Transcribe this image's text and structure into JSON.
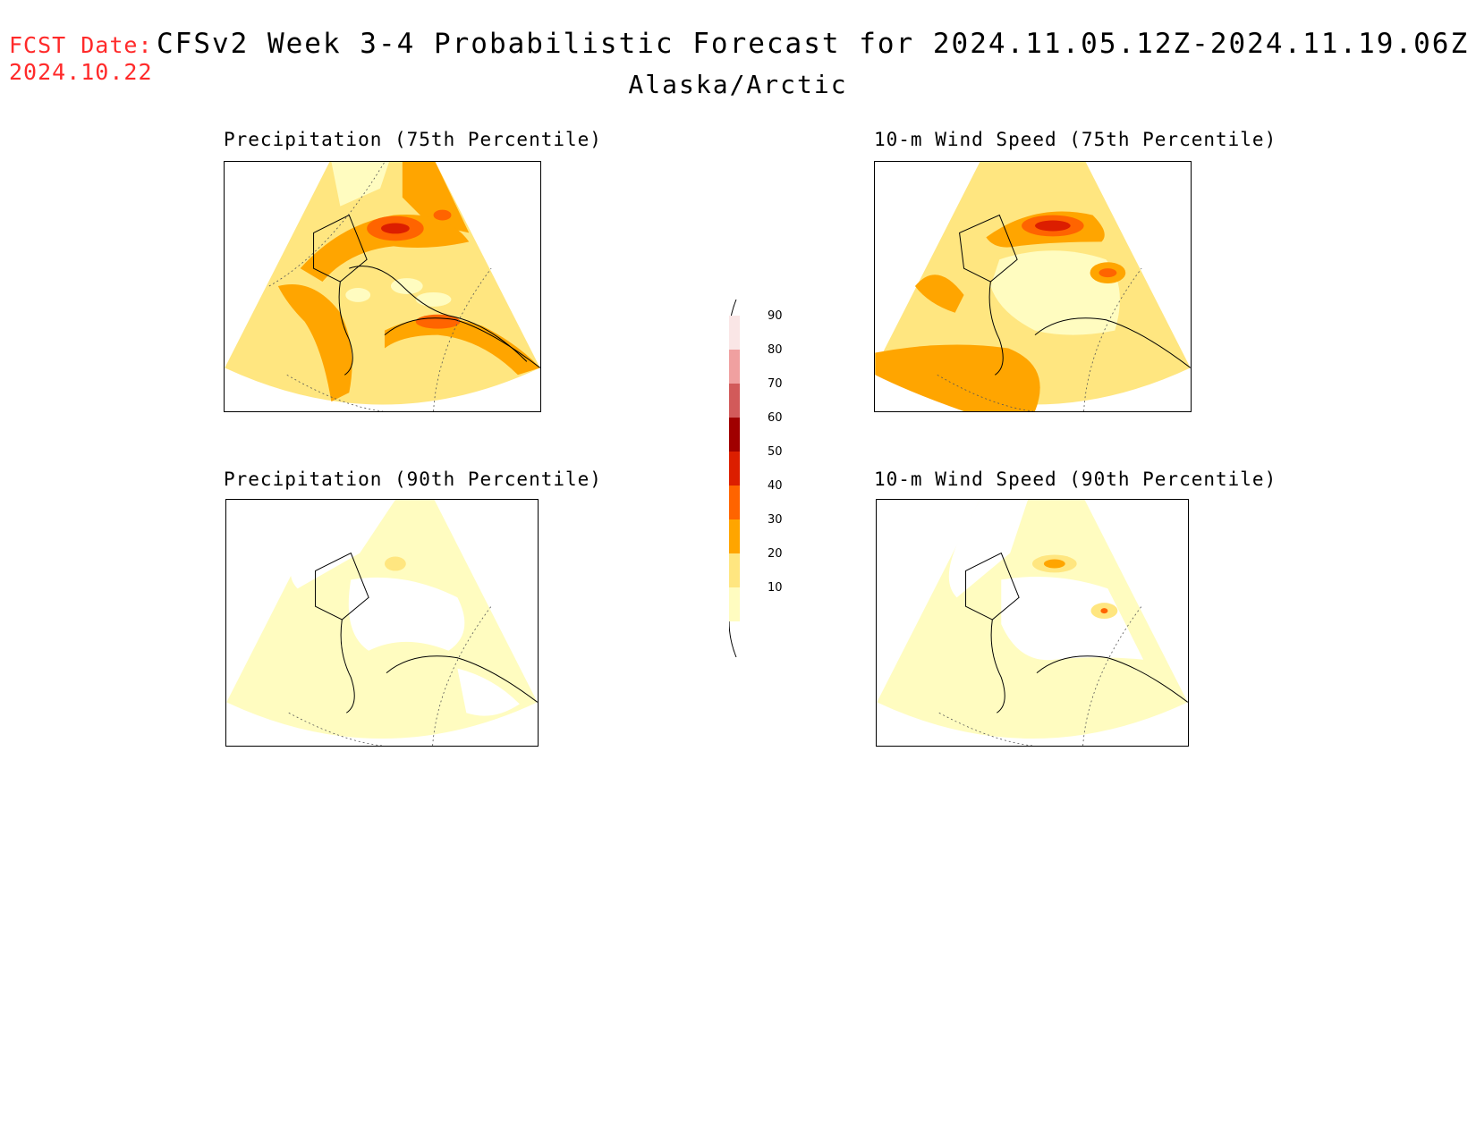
{
  "header": {
    "fcst_label": "FCST Date:",
    "fcst_date": "2024.10.22",
    "title": "CFSv2 Week 3-4 Probabilistic Forecast for 2024.11.05.12Z-2024.11.19.06Z",
    "subtitle": "Alaska/Arctic"
  },
  "panels": [
    {
      "title": "Precipitation (75th Percentile)",
      "level": "high"
    },
    {
      "title": "10-m Wind Speed (75th Percentile)",
      "level": "high"
    },
    {
      "title": "Precipitation (90th Percentile)",
      "level": "low"
    },
    {
      "title": "10-m Wind Speed (90th Percentile)",
      "level": "low"
    }
  ],
  "colorbar": {
    "labels": [
      "10",
      "20",
      "30",
      "40",
      "50",
      "60",
      "70",
      "80",
      "90"
    ],
    "colors": [
      "#fffcc0",
      "#ffe680",
      "#ffa500",
      "#ff6400",
      "#dc1e00",
      "#a00000",
      "#d25a5a",
      "#f0a0a0",
      "#fae6e6"
    ]
  }
}
